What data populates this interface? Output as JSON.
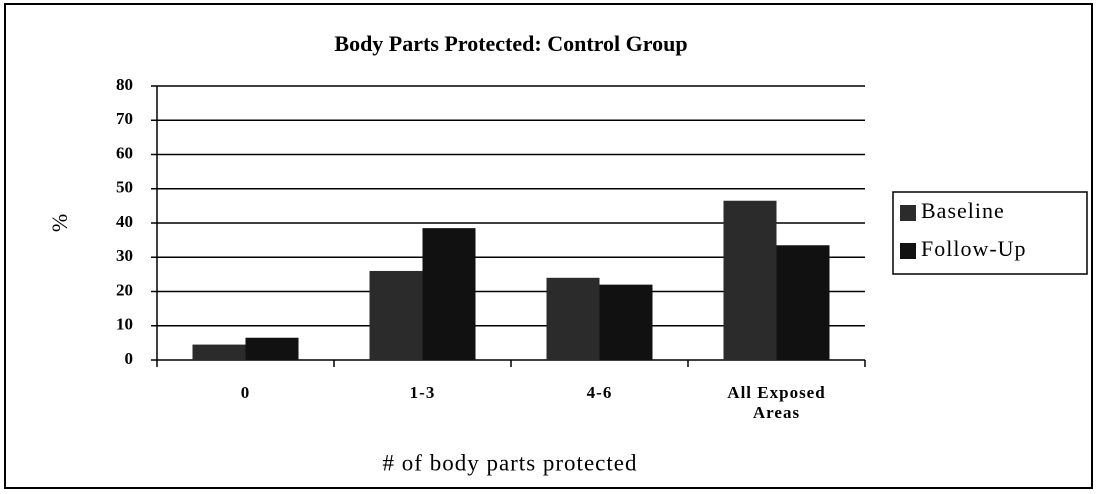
{
  "chart_data": {
    "type": "bar",
    "title": "Body Parts Protected:  Control Group",
    "x_label": "# of body parts protected",
    "y_label": "%",
    "categories": [
      "0",
      "1-3",
      "4-6",
      "All Exposed Areas"
    ],
    "series": [
      {
        "name": "Baseline",
        "color": "#2b2b2b",
        "values": [
          4.5,
          26,
          24,
          46.5
        ]
      },
      {
        "name": "Follow-Up",
        "color": "#111111",
        "values": [
          6.5,
          38.5,
          22,
          33.5
        ]
      }
    ],
    "ylim": [
      0,
      80
    ],
    "yticks": [
      0,
      10,
      20,
      30,
      40,
      50,
      60,
      70,
      80
    ],
    "grid": true,
    "legend": "right"
  }
}
